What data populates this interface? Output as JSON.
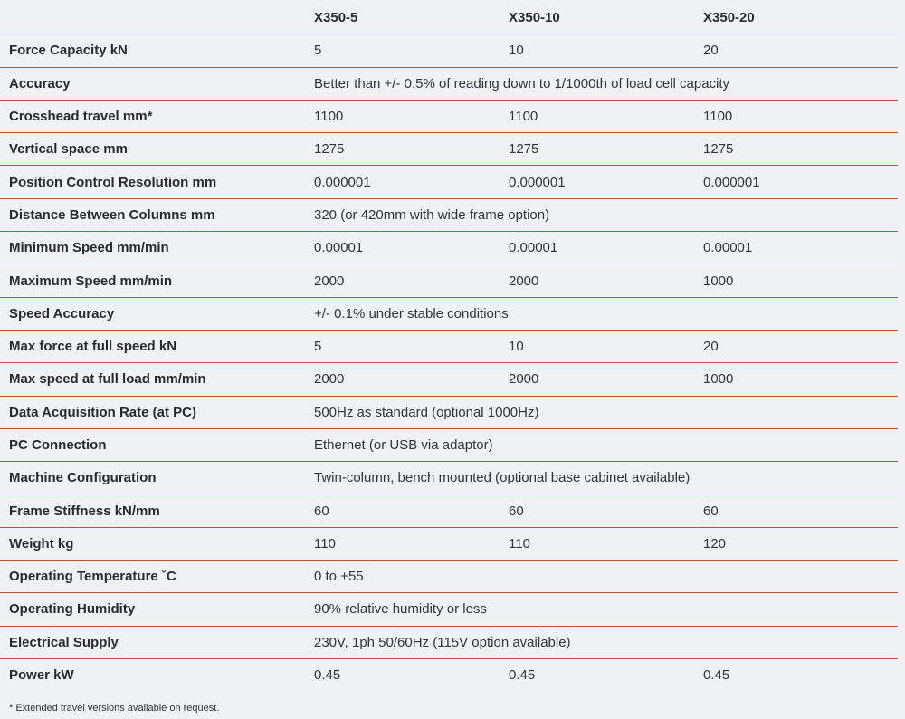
{
  "table": {
    "columns": [
      "X350-5",
      "X350-10",
      "X350-20"
    ],
    "rows": [
      {
        "label": "Force Capacity kN",
        "values": [
          "5",
          "10",
          "20"
        ]
      },
      {
        "label": "Accuracy",
        "values": [
          "Better than +/- 0.5% of reading down to 1/1000th of load cell capacity"
        ]
      },
      {
        "label": "Crosshead travel mm*",
        "values": [
          "1100",
          "1100",
          "1100"
        ]
      },
      {
        "label": "Vertical space mm",
        "values": [
          "1275",
          "1275",
          "1275"
        ]
      },
      {
        "label": "Position Control Resolution mm",
        "values": [
          "0.000001",
          "0.000001",
          "0.000001"
        ]
      },
      {
        "label": "Distance Between Columns mm",
        "values": [
          "320 (or 420mm with wide frame option)"
        ]
      },
      {
        "label": "Minimum Speed mm/min",
        "values": [
          "0.00001",
          "0.00001",
          "0.00001"
        ]
      },
      {
        "label": "Maximum Speed mm/min",
        "values": [
          "2000",
          "2000",
          "1000"
        ]
      },
      {
        "label": "Speed Accuracy",
        "values": [
          "+/- 0.1% under stable conditions"
        ]
      },
      {
        "label": "Max force at full speed kN",
        "values": [
          "5",
          "10",
          "20"
        ]
      },
      {
        "label": "Max speed at full load mm/min",
        "values": [
          "2000",
          "2000",
          "1000"
        ]
      },
      {
        "label": "Data Acquisition Rate (at PC)",
        "values": [
          "500Hz as standard (optional 1000Hz)"
        ]
      },
      {
        "label": "PC Connection",
        "values": [
          "Ethernet (or USB via adaptor)"
        ]
      },
      {
        "label": "Machine Configuration",
        "values": [
          "Twin-column, bench mounted (optional base cabinet available)"
        ]
      },
      {
        "label": "Frame Stiffness kN/mm",
        "values": [
          "60",
          "60",
          "60"
        ]
      },
      {
        "label": "Weight kg",
        "values": [
          "110",
          "110",
          "120"
        ]
      },
      {
        "label": "Operating Temperature ˚C",
        "values": [
          "0 to +55"
        ]
      },
      {
        "label": "Operating Humidity",
        "values": [
          "90% relative humidity or less"
        ]
      },
      {
        "label": "Electrical Supply",
        "values": [
          "230V, 1ph 50/60Hz (115V option available)"
        ]
      },
      {
        "label": "Power kW",
        "values": [
          "0.45",
          "0.45",
          "0.45"
        ]
      }
    ],
    "footnote": "* Extended travel versions available on request."
  }
}
